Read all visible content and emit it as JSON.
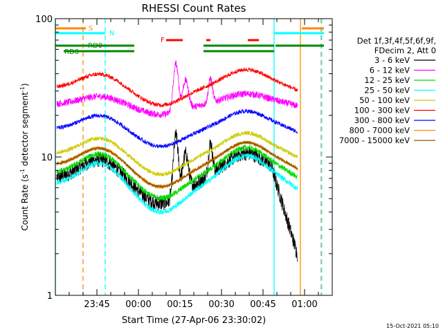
{
  "chart_data": {
    "type": "line",
    "title": "RHESSI Count Rates",
    "xlabel": "Start Time (27-Apr-06 23:30:02)",
    "ylabel_main": "Count Rate (s",
    "ylabel_sup1": "-1",
    "ylabel_mid": " detector segment",
    "ylabel_sup2": "-1",
    "ylabel_end": ")",
    "yscale": "log",
    "ylim": [
      1,
      100
    ],
    "xlim_minutes": [
      0,
      100
    ],
    "y_ticks": [
      "1",
      "10",
      "100"
    ],
    "x_ticks": [
      {
        "label": "23:45",
        "t": 15
      },
      {
        "label": "00:00",
        "t": 30
      },
      {
        "label": "00:15",
        "t": 45
      },
      {
        "label": "00:30",
        "t": 60
      },
      {
        "label": "00:45",
        "t": 75
      },
      {
        "label": "01:00",
        "t": 90
      }
    ],
    "legend": {
      "placement": "right",
      "header_line1": "Det 1f,3f,4f,5f,6f,9f,",
      "header_line2": "FDecim 2, Att 0"
    },
    "series": [
      {
        "name": "3 - 6 keV",
        "color": "#000000",
        "offset": -0.16,
        "amp": 0.17,
        "noise": 0.11
      },
      {
        "name": "6 - 12 keV",
        "color": "#ff00ff",
        "offset": 0.38,
        "amp": 0.07,
        "noise": 0.05
      },
      {
        "name": "12 - 25 keV",
        "color": "#00dd00",
        "offset": -0.12,
        "amp": 0.17,
        "noise": 0.04
      },
      {
        "name": "25 - 50 keV",
        "color": "#00ffff",
        "offset": -0.2,
        "amp": 0.19,
        "noise": 0.04
      },
      {
        "name": "50 - 100 keV",
        "color": "#cccc00",
        "offset": 0.02,
        "amp": 0.14,
        "noise": 0.03
      },
      {
        "name": "100 - 300 keV",
        "color": "#ff0000",
        "offset": 0.5,
        "amp": 0.12,
        "noise": 0.03
      },
      {
        "name": "300 - 800 keV",
        "color": "#0000ff",
        "offset": 0.2,
        "amp": 0.12,
        "noise": 0.03
      },
      {
        "name": "800 - 7000 keV",
        "color": "#ff8800",
        "offset": -0.06,
        "amp": 0.15,
        "noise": 0.03
      },
      {
        "name": "7000 - 15000 keV",
        "color": "#8b5a00",
        "offset": -0.06,
        "amp": 0.15,
        "noise": 0.02
      }
    ],
    "orbit_flags": [
      {
        "label": "S",
        "color": "#ff8800",
        "segments": [
          [
            0,
            11
          ],
          [
            89,
            97
          ]
        ]
      },
      {
        "label": "N",
        "color": "#00ffff",
        "segments": [
          [
            0,
            18
          ],
          [
            79,
            97
          ]
        ]
      },
      {
        "label": "RD0",
        "color": "#008800",
        "segments": [
          [
            0,
            28.5
          ],
          [
            53.5,
            79
          ],
          [
            79.5,
            97
          ]
        ]
      },
      {
        "label": "RD6",
        "color": "#008800",
        "segments": [
          [
            3,
            28.5
          ],
          [
            53.5,
            79
          ]
        ]
      },
      {
        "label": "F",
        "color": "#ff0000",
        "segments": [
          [
            40,
            46
          ],
          [
            54.5,
            56
          ],
          [
            69.5,
            73.5
          ]
        ]
      }
    ],
    "vertical_markers": [
      {
        "t": 0,
        "color": "#00ffff",
        "style": "solid"
      },
      {
        "t": 10,
        "color": "#ff8800",
        "style": "dashed"
      },
      {
        "t": 18,
        "color": "#00ffff",
        "style": "dashed"
      },
      {
        "t": 79,
        "color": "#00ffff",
        "style": "solid"
      },
      {
        "t": 88.5,
        "color": "#ff8800",
        "style": "solid"
      },
      {
        "t": 96,
        "color": "#ff8800",
        "style": "dashed"
      },
      {
        "t": 96.2,
        "color": "#00ffff",
        "style": "dashed"
      }
    ]
  },
  "footer": {
    "timestamp": "15-Oct-2021 05:10"
  }
}
